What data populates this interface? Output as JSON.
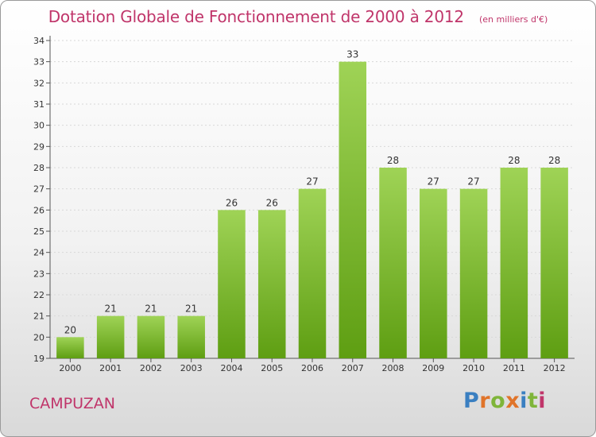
{
  "header": {
    "title": "Dotation Globale de Fonctionnement de 2000 à 2012",
    "subtitle": "(en milliers d'€)"
  },
  "footer": {
    "commune": "CAMPUZAN",
    "brand": "Proxiti",
    "brand_letter_colors": [
      "#3a7fc1",
      "#e0742a",
      "#7fb53a",
      "#e0742a",
      "#3a7fc1",
      "#7fb53a",
      "#c0356a"
    ]
  },
  "colors": {
    "bar_top": "#9fd356",
    "bar_bottom": "#5e9e12",
    "text_accent": "#c0356a",
    "axis": "#555555",
    "grid": "#d8d8d8"
  },
  "chart_data": {
    "type": "bar",
    "categories": [
      "2000",
      "2001",
      "2002",
      "2003",
      "2004",
      "2005",
      "2006",
      "2007",
      "2008",
      "2009",
      "2010",
      "2011",
      "2012"
    ],
    "values": [
      20,
      21,
      21,
      21,
      26,
      26,
      27,
      33,
      28,
      27,
      27,
      28,
      28
    ],
    "data_labels": [
      "20",
      "21",
      "21",
      "21",
      "26",
      "26",
      "27",
      "33",
      "28",
      "27",
      "27",
      "28",
      "28"
    ],
    "title": "Dotation Globale de Fonctionnement de 2000 à 2012",
    "subtitle": "(en milliers d'€)",
    "xlabel": "",
    "ylabel": "",
    "ylim": [
      19,
      34
    ],
    "yticks": [
      "19",
      "20",
      "21",
      "22",
      "23",
      "24",
      "25",
      "26",
      "27",
      "28",
      "29",
      "30",
      "31",
      "32",
      "33",
      "34"
    ],
    "grid": true,
    "legend": "none"
  }
}
